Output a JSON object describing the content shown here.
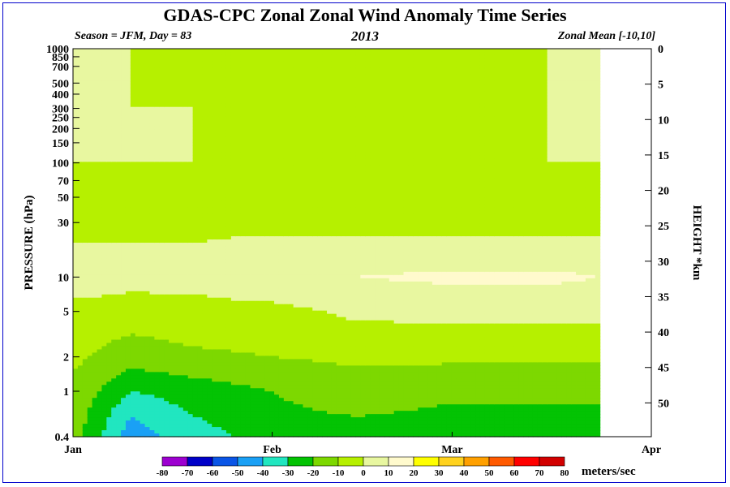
{
  "title": "GDAS-CPC Zonal Zonal Wind Anomaly Time Series",
  "subtitle_left": "Season = JFM, Day =  83",
  "subtitle_center": "2013",
  "subtitle_right": "Zonal Mean [-10,10]",
  "units_label": "meters/sec",
  "colors": {
    "frame": "#0000cc",
    "levels": [
      "#9d00d0",
      "#0000c8",
      "#0a55e6",
      "#1aa0f5",
      "#21e6c0",
      "#03c303",
      "#7dd800",
      "#b6f000",
      "#e8f7a0",
      "#fffacd",
      "#ffff00",
      "#ffd21e",
      "#ffa000",
      "#ff5a00",
      "#ff0000",
      "#d20000",
      "#a00000",
      "#9b7d3c"
    ]
  },
  "chart_data": {
    "type": "heatmap",
    "title": "GDAS-CPC Zonal Zonal Wind Anomaly Time Series",
    "xlabel": "",
    "ylabel": "PRESSURE (hPa)",
    "y2label": "HEIGHT *km",
    "x_ticks": [
      "Jan",
      "Feb",
      "Mar",
      "Apr"
    ],
    "x_tick_days": [
      1,
      32,
      60,
      91
    ],
    "x_range_days": [
      1,
      91
    ],
    "data_end_day": 83,
    "y_scale": "log",
    "y_ticks_hpa": [
      0.4,
      1,
      2,
      5,
      10,
      30,
      50,
      70,
      100,
      150,
      200,
      250,
      300,
      400,
      500,
      700,
      850,
      1000
    ],
    "y_range_hpa": [
      1000,
      0.4
    ],
    "y2_ticks_km": [
      0,
      5,
      10,
      15,
      20,
      25,
      30,
      35,
      40,
      45,
      50
    ],
    "colorbar_levels": [
      -80,
      -70,
      -60,
      -50,
      -40,
      -30,
      -20,
      -10,
      0,
      10,
      20,
      30,
      40,
      50,
      60,
      70,
      80
    ],
    "approx_field_ms": {
      "pressure_hpa": [
        0.4,
        0.6,
        1,
        2,
        5,
        10,
        20,
        30,
        50,
        70,
        100,
        300,
        1000
      ],
      "profiles": [
        {
          "day": 1,
          "values": [
            -15,
            -14,
            -12,
            -8,
            -5,
            8,
            0,
            -3,
            -8,
            -3,
            0,
            0,
            0
          ]
        },
        {
          "day": 10,
          "values": [
            -45,
            -40,
            -30,
            -15,
            -5,
            4,
            0,
            -3,
            -5,
            -3,
            0,
            0,
            0
          ]
        },
        {
          "day": 20,
          "values": [
            -35,
            -30,
            -25,
            -12,
            -3,
            3,
            0,
            -3,
            -3,
            -3,
            0,
            0,
            -4
          ]
        },
        {
          "day": 32,
          "values": [
            -25,
            -22,
            -20,
            -10,
            -3,
            8,
            2,
            -3,
            -3,
            -3,
            -5,
            -5,
            -5
          ]
        },
        {
          "day": 45,
          "values": [
            -25,
            -20,
            -15,
            -8,
            2,
            10,
            2,
            -3,
            -3,
            -3,
            0,
            0,
            0
          ]
        },
        {
          "day": 60,
          "values": [
            -25,
            -22,
            -18,
            -8,
            3,
            12,
            2,
            -3,
            -8,
            -3,
            0,
            -3,
            -3
          ]
        },
        {
          "day": 75,
          "values": [
            -25,
            -22,
            -18,
            -8,
            3,
            12,
            2,
            -3,
            -8,
            -3,
            0,
            0,
            0
          ]
        },
        {
          "day": 83,
          "values": [
            -25,
            -22,
            -18,
            -8,
            3,
            10,
            2,
            -3,
            -8,
            -3,
            0,
            0,
            0
          ]
        }
      ]
    }
  }
}
